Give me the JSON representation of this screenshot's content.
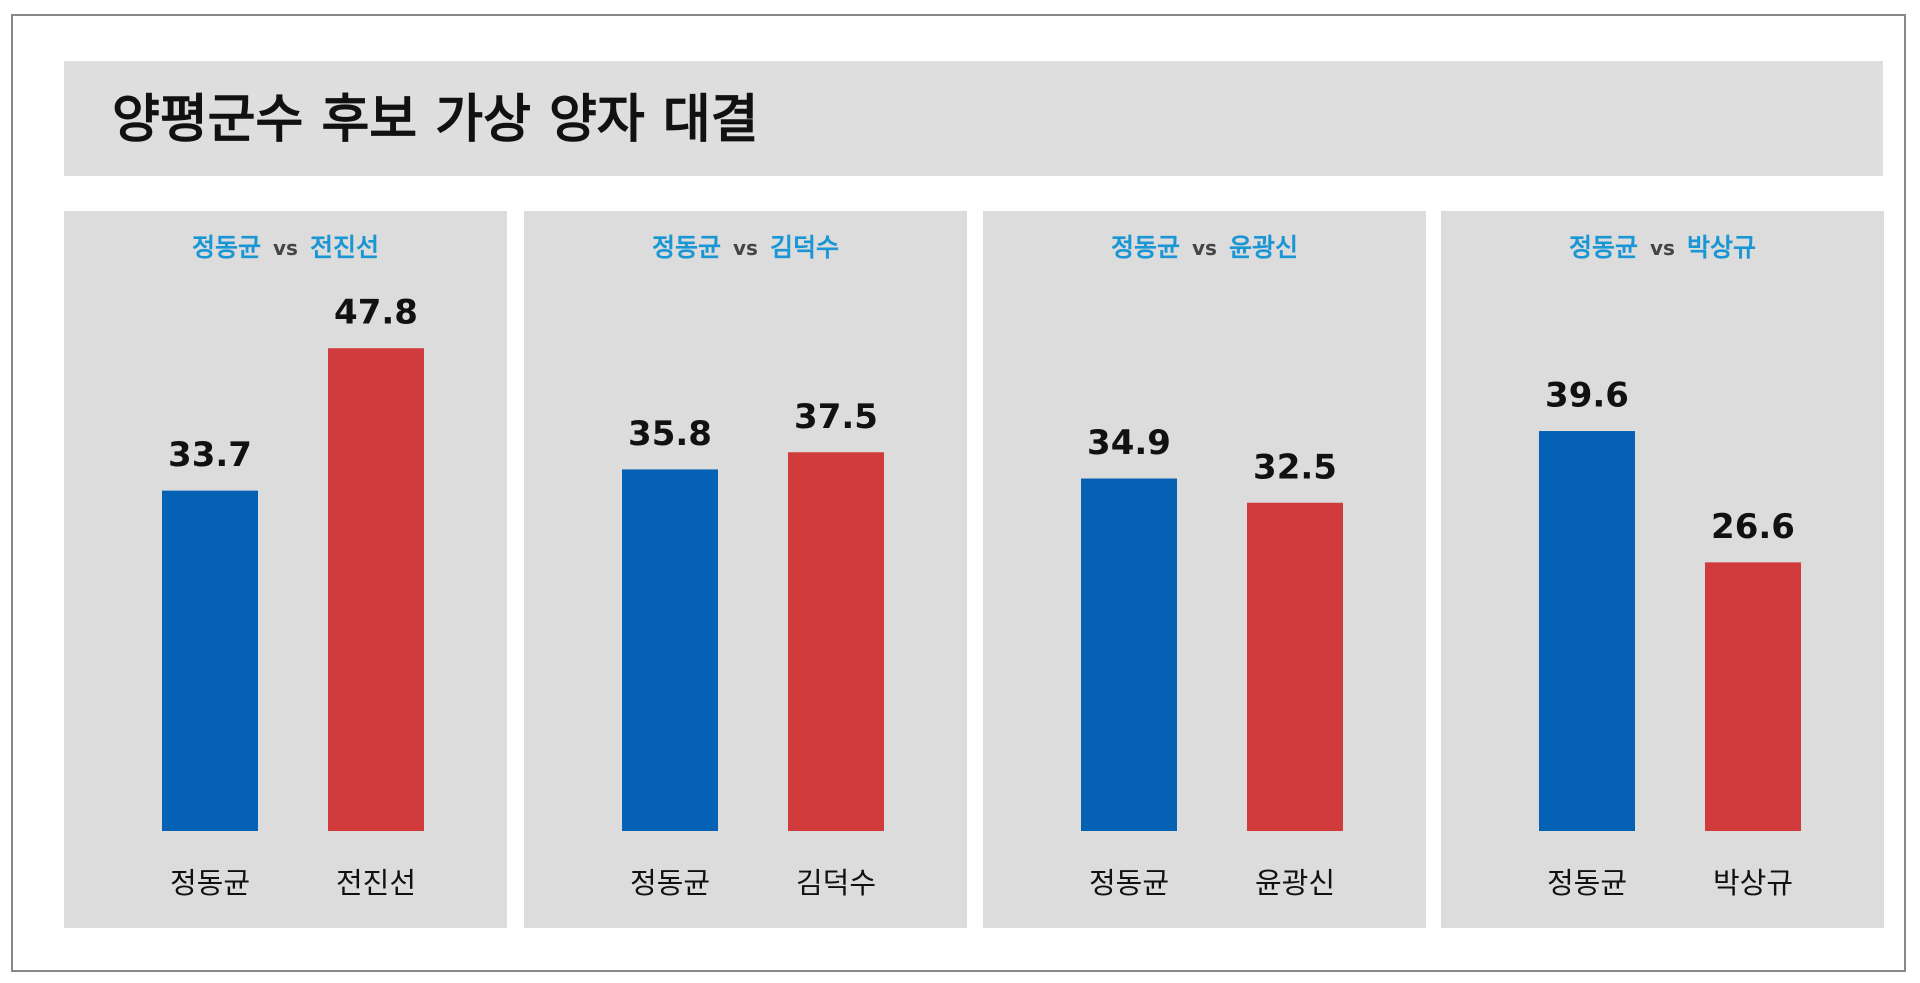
{
  "title": "양평군수 후보 가상 양자 대결",
  "chart_data": [
    {
      "type": "bar",
      "title": [
        "정동균",
        "vs",
        "전진선"
      ],
      "categories": [
        "정동균",
        "전진선"
      ],
      "values": [
        33.7,
        47.8
      ],
      "colors": [
        "#0561b3",
        "#d23b3b"
      ]
    },
    {
      "type": "bar",
      "title": [
        "정동균",
        "vs",
        "김덕수"
      ],
      "categories": [
        "정동균",
        "김덕수"
      ],
      "values": [
        35.8,
        37.5
      ],
      "colors": [
        "#0561b3",
        "#d23b3b"
      ]
    },
    {
      "type": "bar",
      "title": [
        "정동균",
        "vs",
        "윤광신"
      ],
      "categories": [
        "정동균",
        "윤광신"
      ],
      "values": [
        34.9,
        32.5
      ],
      "colors": [
        "#0561b3",
        "#d23b3b"
      ]
    },
    {
      "type": "bar",
      "title": [
        "정동균",
        "vs",
        "박상규"
      ],
      "categories": [
        "정동균",
        "박상규"
      ],
      "values": [
        39.6,
        26.6
      ],
      "colors": [
        "#0561b3",
        "#d23b3b"
      ]
    }
  ]
}
